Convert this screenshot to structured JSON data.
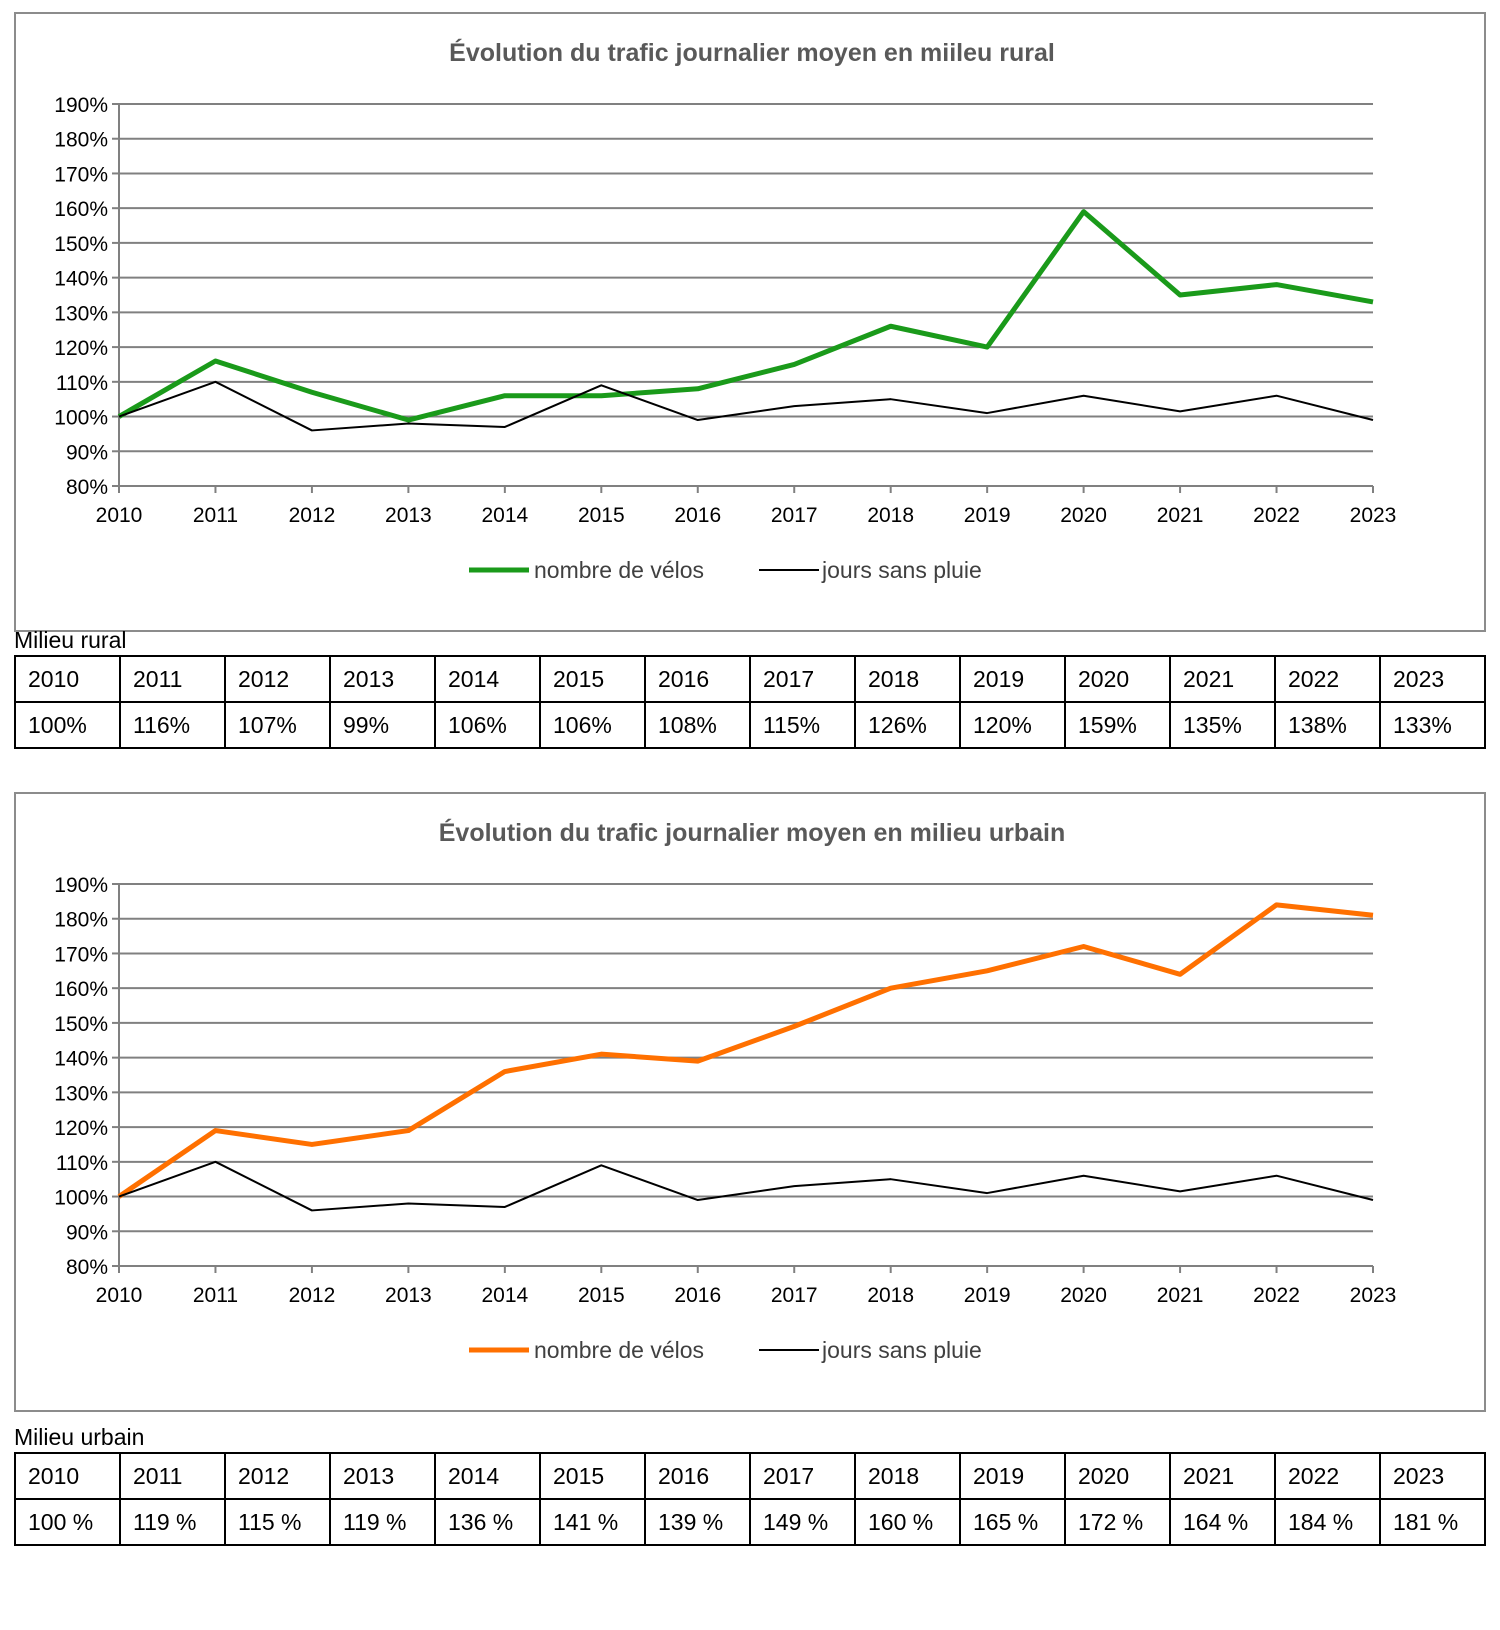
{
  "charts": [
    {
      "title": "Évolution du trafic journalier moyen en miileu rural",
      "caption": "Milieu rural",
      "years": [
        "2010",
        "2011",
        "2012",
        "2013",
        "2014",
        "2015",
        "2016",
        "2017",
        "2018",
        "2019",
        "2020",
        "2021",
        "2022",
        "2023"
      ],
      "table_values": [
        "100%",
        "116%",
        "107%",
        "99%",
        "106%",
        "106%",
        "108%",
        "115%",
        "126%",
        "120%",
        "159%",
        "135%",
        "138%",
        "133%"
      ]
    },
    {
      "title": "Évolution du trafic journalier moyen en milieu urbain",
      "caption": "Milieu urbain",
      "years": [
        "2010",
        "2011",
        "2012",
        "2013",
        "2014",
        "2015",
        "2016",
        "2017",
        "2018",
        "2019",
        "2020",
        "2021",
        "2022",
        "2023"
      ],
      "table_values": [
        "100 %",
        "119 %",
        "115 %",
        "119 %",
        "136 %",
        "141 %",
        "139 %",
        "149 %",
        "160 %",
        "165 %",
        "172 %",
        "164 %",
        "184 %",
        "181 %"
      ]
    }
  ],
  "chart_data": [
    {
      "type": "line",
      "title": "Évolution du trafic journalier moyen en miileu rural",
      "x": [
        2010,
        2011,
        2012,
        2013,
        2014,
        2015,
        2016,
        2017,
        2018,
        2019,
        2020,
        2021,
        2022,
        2023
      ],
      "xlabel": "",
      "ylabel": "",
      "ylim": [
        80,
        190
      ],
      "yticks": [
        "80%",
        "90%",
        "100%",
        "110%",
        "120%",
        "130%",
        "140%",
        "150%",
        "160%",
        "170%",
        "180%",
        "190%"
      ],
      "grid": true,
      "legend_position": "bottom",
      "series": [
        {
          "name": "nombre de vélos",
          "color": "#1a9a1a",
          "values": [
            100,
            116,
            107,
            99,
            106,
            106,
            108,
            115,
            126,
            120,
            159,
            135,
            138,
            133
          ]
        },
        {
          "name": "jours sans pluie",
          "color": "#000000",
          "values": [
            100,
            110,
            96,
            98,
            97,
            109,
            99,
            103,
            105,
            101,
            106,
            101.5,
            106,
            99
          ]
        }
      ]
    },
    {
      "type": "line",
      "title": "Évolution du trafic journalier moyen en milieu urbain",
      "x": [
        2010,
        2011,
        2012,
        2013,
        2014,
        2015,
        2016,
        2017,
        2018,
        2019,
        2020,
        2021,
        2022,
        2023
      ],
      "xlabel": "",
      "ylabel": "",
      "ylim": [
        80,
        190
      ],
      "yticks": [
        "80%",
        "90%",
        "100%",
        "110%",
        "120%",
        "130%",
        "140%",
        "150%",
        "160%",
        "170%",
        "180%",
        "190%"
      ],
      "grid": true,
      "legend_position": "bottom",
      "series": [
        {
          "name": "nombre de vélos",
          "color": "#ff7000",
          "values": [
            100,
            119,
            115,
            119,
            136,
            141,
            139,
            149,
            160,
            165,
            172,
            164,
            184,
            181
          ]
        },
        {
          "name": "jours sans pluie",
          "color": "#000000",
          "values": [
            100,
            110,
            96,
            98,
            97,
            109,
            99,
            103,
            105,
            101,
            106,
            101.5,
            106,
            99
          ]
        }
      ]
    }
  ]
}
